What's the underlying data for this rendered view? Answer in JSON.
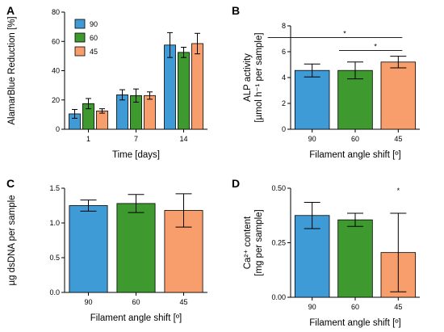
{
  "colors": {
    "90": "#3f9bd6",
    "60": "#3e9a2e",
    "45": "#f89e6c"
  },
  "chart_data": [
    {
      "id": "A",
      "type": "bar",
      "panel_label": "A",
      "ylabel": "AlamarBlue Reduction [%]",
      "xlabel": "Time [days]",
      "categories": [
        "1",
        "7",
        "14"
      ],
      "ylim": [
        0,
        80
      ],
      "yticks": [
        0,
        20,
        40,
        60,
        80
      ],
      "legend_placement": "top-left",
      "series": [
        {
          "name": "90",
          "color": "#3f9bd6",
          "values": [
            10.5,
            23.5,
            57.5
          ],
          "errors": [
            3,
            3.5,
            8.5
          ]
        },
        {
          "name": "60",
          "color": "#3e9a2e",
          "values": [
            17.5,
            23.0,
            52.5
          ],
          "errors": [
            3.5,
            4.5,
            3.5
          ]
        },
        {
          "name": "45",
          "color": "#f89e6c",
          "values": [
            12.5,
            23.0,
            58.5
          ],
          "errors": [
            1.5,
            2.5,
            7.0
          ]
        }
      ]
    },
    {
      "id": "B",
      "type": "bar",
      "panel_label": "B",
      "ylabel_line1": "ALP activity",
      "ylabel_line2": "[µmol h⁻¹ per sample]",
      "xlabel": "Filament angle shift [º]",
      "categories": [
        "90",
        "60",
        "45"
      ],
      "ylim": [
        0,
        8
      ],
      "yticks": [
        0,
        2,
        4,
        6,
        8
      ],
      "values": [
        4.55,
        4.55,
        5.2
      ],
      "errors": [
        0.5,
        0.65,
        0.45
      ],
      "colors": [
        "#3f9bd6",
        "#3e9a2e",
        "#f89e6c"
      ],
      "significance": [
        {
          "from": 0,
          "to": 2,
          "y": 7.1,
          "label": "*"
        },
        {
          "from": 1,
          "to": 2,
          "y": 6.1,
          "label": "*"
        }
      ]
    },
    {
      "id": "C",
      "type": "bar",
      "panel_label": "C",
      "ylabel": "µg dsDNA per sample",
      "xlabel": "Filament angle shift [º]",
      "categories": [
        "90",
        "60",
        "45"
      ],
      "ylim": [
        0,
        1.5
      ],
      "yticks": [
        "0.0",
        "0.5",
        "1.0",
        "1.5"
      ],
      "ytick_values": [
        0,
        0.5,
        1.0,
        1.5
      ],
      "values": [
        1.25,
        1.28,
        1.18
      ],
      "errors": [
        0.08,
        0.13,
        0.24
      ],
      "colors": [
        "#3f9bd6",
        "#3e9a2e",
        "#f89e6c"
      ]
    },
    {
      "id": "D",
      "type": "bar",
      "panel_label": "D",
      "ylabel_line1": "Ca²⁺ content",
      "ylabel_line2": "[mg per sample]",
      "xlabel": "Filament angle shift [º]",
      "categories": [
        "90",
        "60",
        "45"
      ],
      "ylim": [
        0,
        0.5
      ],
      "yticks": [
        "0.00",
        "0.25",
        "0.50"
      ],
      "ytick_values": [
        0,
        0.25,
        0.5
      ],
      "values": [
        0.375,
        0.355,
        0.205
      ],
      "errors": [
        0.06,
        0.03,
        0.18
      ],
      "colors": [
        "#3f9bd6",
        "#3e9a2e",
        "#f89e6c"
      ],
      "annotation": {
        "index": 2,
        "label": "*"
      }
    }
  ]
}
